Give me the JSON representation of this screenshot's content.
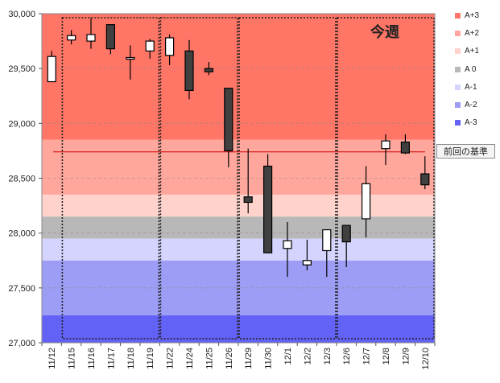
{
  "chart_data": {
    "type": "candlestick",
    "title": "",
    "annotation": "今週",
    "reference_line": {
      "label": "前回の基準",
      "value": 28740,
      "color": "#cc0000"
    },
    "ylim": [
      27000,
      30000
    ],
    "yticks": [
      27000,
      27500,
      28000,
      28500,
      29000,
      29500,
      30000
    ],
    "ytick_labels": [
      "27,000",
      "27,500",
      "28,000",
      "28,500",
      "29,000",
      "29,500",
      "30,000"
    ],
    "grid": true,
    "legend_position": "right",
    "categories": [
      "11/12",
      "11/15",
      "11/16",
      "11/17",
      "11/18",
      "11/19",
      "11/22",
      "11/24",
      "11/25",
      "11/26",
      "11/29",
      "11/30",
      "12/1",
      "12/2",
      "12/3",
      "12/6",
      "12/7",
      "12/8",
      "12/9",
      "12/10"
    ],
    "open": [
      29380,
      29760,
      29750,
      29900,
      29590,
      29660,
      29620,
      29660,
      29500,
      29320,
      28330,
      28610,
      27860,
      27710,
      27840,
      28070,
      28130,
      28770,
      28830,
      28540
    ],
    "close": [
      29610,
      29800,
      29810,
      29680,
      29600,
      29750,
      29780,
      29300,
      29470,
      28750,
      28280,
      27820,
      27930,
      27750,
      28030,
      27920,
      28450,
      28840,
      28730,
      28440
    ],
    "high": [
      29660,
      29850,
      29960,
      29900,
      29710,
      29770,
      29810,
      29760,
      29560,
      29320,
      28770,
      28720,
      28100,
      27940,
      28030,
      28070,
      28610,
      28900,
      28900,
      28700
    ],
    "low": [
      29380,
      29720,
      29680,
      29630,
      29400,
      29590,
      29530,
      29220,
      29440,
      28600,
      28180,
      27820,
      27600,
      27660,
      27600,
      27690,
      27960,
      28620,
      28720,
      28400
    ],
    "bands": [
      {
        "name": "A+3",
        "from": 28850,
        "to": 30000,
        "color": "#ff7566"
      },
      {
        "name": "A+2",
        "from": 28350,
        "to": 28850,
        "color": "#ffa79c"
      },
      {
        "name": "A+1",
        "from": 28150,
        "to": 28350,
        "color": "#ffd3cc"
      },
      {
        "name": "A 0",
        "from": 27950,
        "to": 28150,
        "color": "#b8b8b8"
      },
      {
        "name": "A-1",
        "from": 27750,
        "to": 27950,
        "color": "#d4d4ff"
      },
      {
        "name": "A-2",
        "from": 27250,
        "to": 27750,
        "color": "#9d9df5"
      },
      {
        "name": "A-3",
        "from": 27000,
        "to": 27250,
        "color": "#6262f7"
      }
    ],
    "week_groups": [
      [
        1,
        5
      ],
      [
        6,
        9
      ],
      [
        10,
        14
      ],
      [
        15,
        19
      ]
    ],
    "colors": {
      "up_body": "#ffffff",
      "down_body": "#404040",
      "wick": "#000000"
    }
  }
}
